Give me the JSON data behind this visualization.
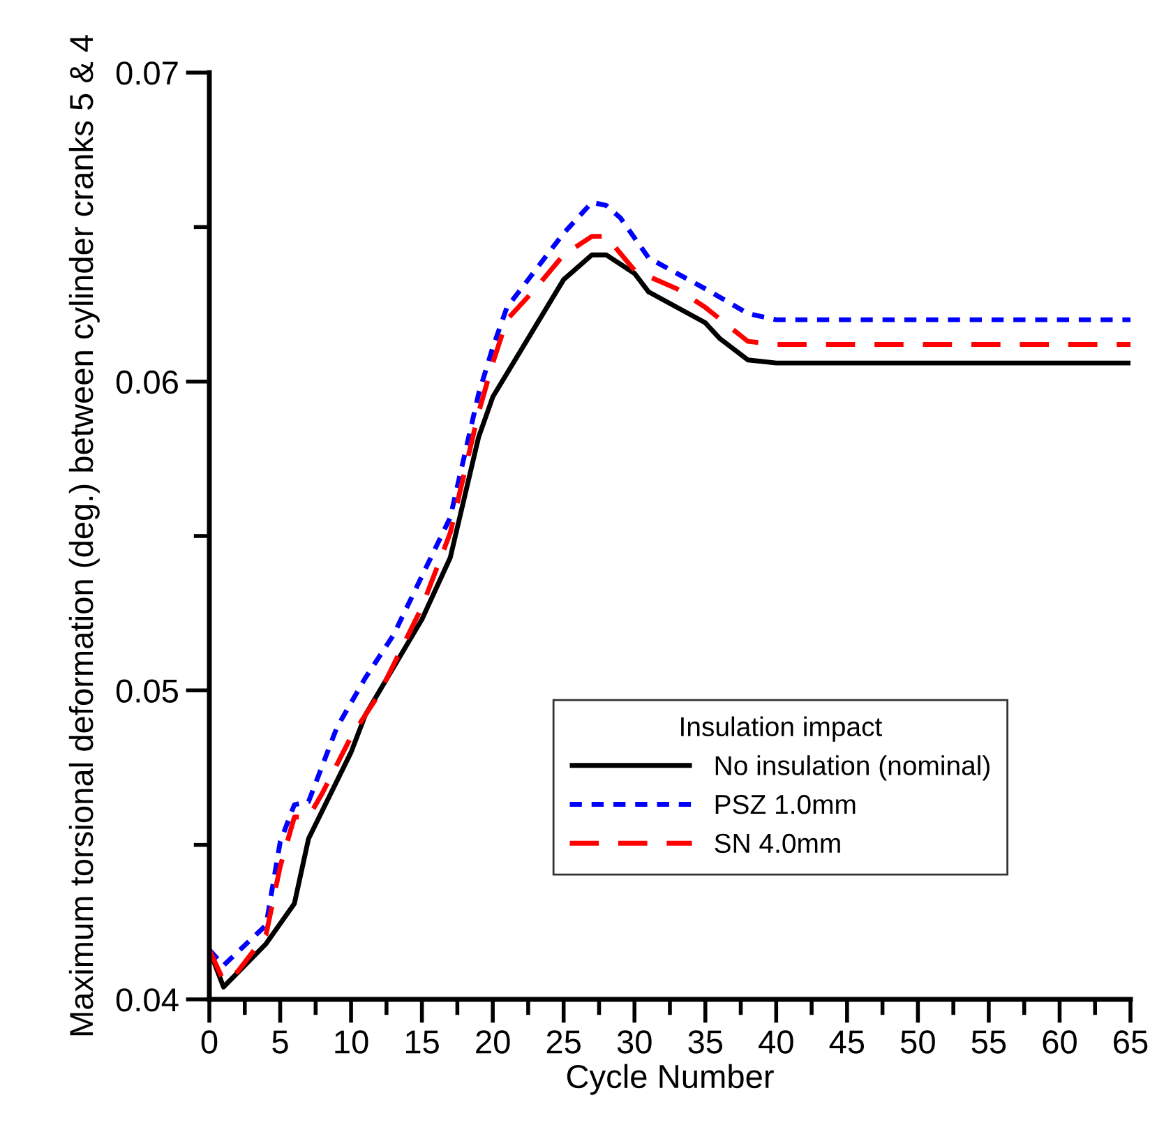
{
  "chart_data": {
    "type": "line",
    "xlabel": "Cycle Number",
    "ylabel": "Maximum torsional deformation (deg.) between cylinder cranks 5 & 4",
    "legend_title": "Insulation impact",
    "legend": "bottom right",
    "grid": false,
    "xlim": [
      0,
      65
    ],
    "ylim": [
      0.04,
      0.07
    ],
    "xticks": [
      0,
      {
        "value": 2.5,
        "label": null
      },
      5,
      {
        "value": 7.5,
        "label": null
      },
      10,
      {
        "value": 12.5,
        "label": null
      },
      15,
      {
        "value": 17.5,
        "label": null
      },
      20,
      {
        "value": 22.5,
        "label": null
      },
      25,
      {
        "value": 27.5,
        "label": null
      },
      30,
      {
        "value": 32.5,
        "label": null
      },
      35,
      {
        "value": 37.5,
        "label": null
      },
      40,
      {
        "value": 42.5,
        "label": null
      },
      45,
      {
        "value": 47.5,
        "label": null
      },
      50,
      {
        "value": 52.5,
        "label": null
      },
      55,
      {
        "value": 57.5,
        "label": null
      },
      60,
      {
        "value": 62.5,
        "label": null
      },
      65
    ],
    "yticks": [
      0.04,
      {
        "value": 0.045,
        "label": null
      },
      0.05,
      {
        "value": 0.055,
        "label": null
      },
      0.06,
      {
        "value": 0.065,
        "label": null
      },
      0.07
    ],
    "series": [
      {
        "name": "No insulation (nominal)",
        "color": "#000000",
        "line_style": "solid",
        "x": [
          0,
          1,
          4,
          6,
          7,
          10,
          11,
          15,
          17,
          19,
          20,
          25,
          27,
          28,
          30,
          31,
          35,
          36,
          38,
          40,
          65
        ],
        "values": [
          0.0416,
          0.0404,
          0.0418,
          0.0431,
          0.0452,
          0.048,
          0.0492,
          0.0523,
          0.0543,
          0.0582,
          0.0595,
          0.0633,
          0.0641,
          0.0641,
          0.0635,
          0.0629,
          0.0619,
          0.0614,
          0.0607,
          0.0606,
          0.0606
        ]
      },
      {
        "name": "PSZ 1.0mm",
        "color": "#0000ff",
        "line_style": "dotted",
        "x": [
          0,
          1,
          4,
          5,
          6,
          7,
          9,
          11,
          13,
          15,
          17,
          19,
          20,
          21,
          23,
          25,
          27,
          28,
          29,
          31,
          35,
          38,
          40,
          65
        ],
        "values": [
          0.0416,
          0.0411,
          0.0424,
          0.0451,
          0.0463,
          0.0464,
          0.0488,
          0.0504,
          0.0518,
          0.0537,
          0.0556,
          0.0596,
          0.0611,
          0.0624,
          0.0636,
          0.0648,
          0.0658,
          0.0657,
          0.0653,
          0.064,
          0.063,
          0.0622,
          0.062,
          0.062
        ]
      },
      {
        "name": "SN 4.0mm",
        "color": "#ff0000",
        "line_style": "dashed",
        "x": [
          0,
          1,
          2,
          4,
          5,
          6,
          7,
          8,
          10,
          12,
          15,
          17,
          19,
          20,
          21,
          23,
          25,
          27,
          28,
          30,
          33,
          35,
          38,
          40,
          65
        ],
        "values": [
          0.0416,
          0.0406,
          0.0409,
          0.0421,
          0.0443,
          0.0459,
          0.0459,
          0.0467,
          0.0485,
          0.0499,
          0.0527,
          0.0551,
          0.059,
          0.0606,
          0.062,
          0.063,
          0.0641,
          0.0647,
          0.0647,
          0.0636,
          0.063,
          0.0624,
          0.0613,
          0.0612,
          0.0612
        ]
      }
    ]
  }
}
